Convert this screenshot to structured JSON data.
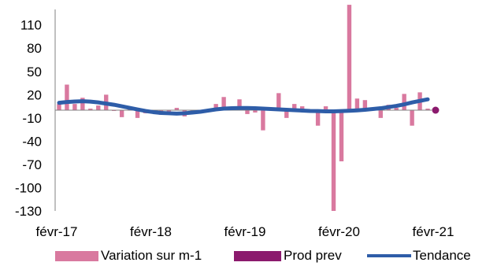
{
  "chart_data": {
    "type": "bar",
    "title": "",
    "xlabel": "",
    "ylabel": "",
    "ylim": [
      -130,
      130
    ],
    "yticks": [
      110,
      80,
      50,
      20,
      -10,
      -40,
      -70,
      -100,
      -130
    ],
    "x_tick_labels": [
      "févr-17",
      "févr-18",
      "févr-19",
      "févr-20",
      "févr-21"
    ],
    "grid": false,
    "legend_position": "bottom",
    "series": [
      {
        "name": "Variation sur m-1",
        "kind": "bar",
        "color": "#d9799f",
        "values": [
          8,
          33,
          8,
          16,
          2,
          6,
          20,
          -1,
          -9,
          2,
          -10,
          -4,
          -2,
          -6,
          -5,
          3,
          -8,
          -4,
          -3,
          1,
          8,
          17,
          3,
          14,
          -5,
          -3,
          -26,
          2,
          22,
          -10,
          8,
          5,
          -2,
          -20,
          5,
          -130,
          -66,
          136,
          15,
          13,
          0,
          -10,
          7,
          3,
          21,
          -20,
          23,
          2
        ]
      },
      {
        "name": "Prod prev",
        "kind": "point",
        "color": "#8b1a6d",
        "values": [
          0
        ]
      },
      {
        "name": "Tendance",
        "kind": "line",
        "color": "#2e5da8",
        "values": [
          9.5,
          10.5,
          11.2,
          11.5,
          11,
          10,
          8.5,
          7,
          5,
          3,
          1,
          -1,
          -2.5,
          -3.5,
          -4,
          -4.5,
          -4,
          -3,
          -2,
          -0.5,
          1,
          2,
          2.5,
          2.8,
          2.8,
          2.5,
          2,
          1.5,
          1,
          0.5,
          0,
          -0.5,
          -1,
          -1.2,
          -1.5,
          -1.5,
          -1.2,
          -0.8,
          -0.2,
          0.5,
          1.5,
          2.5,
          4,
          5.5,
          7.5,
          10,
          12,
          14
        ]
      }
    ]
  }
}
